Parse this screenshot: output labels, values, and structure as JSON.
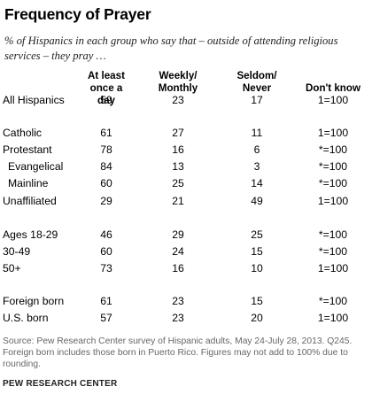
{
  "title": "Frequency of Prayer",
  "subtitle": "% of Hispanics in each group who say that – outside of attending religious services – they pray …",
  "chart_data": {
    "type": "table",
    "columns": [
      {
        "line1": "At least",
        "line2": "once a day"
      },
      {
        "line1": "Weekly/",
        "line2": "Monthly"
      },
      {
        "line1": "Seldom/",
        "line2": "Never"
      },
      {
        "line1": "",
        "line2": "Don't know"
      }
    ],
    "rows": [
      {
        "label": "All Hispanics",
        "indent": false,
        "values": [
          "59",
          "23",
          "17",
          "1=100"
        ]
      },
      {
        "label": "Catholic",
        "indent": false,
        "values": [
          "61",
          "27",
          "11",
          "1=100"
        ]
      },
      {
        "label": "Protestant",
        "indent": false,
        "values": [
          "78",
          "16",
          "6",
          "*=100"
        ]
      },
      {
        "label": "Evangelical",
        "indent": true,
        "values": [
          "84",
          "13",
          "3",
          "*=100"
        ]
      },
      {
        "label": "Mainline",
        "indent": true,
        "values": [
          "60",
          "25",
          "14",
          "*=100"
        ]
      },
      {
        "label": "Unaffiliated",
        "indent": false,
        "values": [
          "29",
          "21",
          "49",
          "1=100"
        ]
      },
      {
        "label": "Ages 18-29",
        "indent": false,
        "values": [
          "46",
          "29",
          "25",
          "*=100"
        ]
      },
      {
        "label": "30-49",
        "indent": false,
        "values": [
          "60",
          "24",
          "15",
          "*=100"
        ]
      },
      {
        "label": "50+",
        "indent": false,
        "values": [
          "73",
          "16",
          "10",
          "1=100"
        ]
      },
      {
        "label": "Foreign born",
        "indent": false,
        "values": [
          "61",
          "23",
          "15",
          "*=100"
        ]
      },
      {
        "label": "U.S. born",
        "indent": false,
        "values": [
          "57",
          "23",
          "20",
          "1=100"
        ]
      }
    ]
  },
  "note": "Source: Pew Research Center survey of Hispanic adults, May 24-July 28, 2013. Q245. Foreign born includes those born in Puerto Rico. Figures may not add to 100% due to rounding.",
  "footer": "PEW RESEARCH CENTER"
}
